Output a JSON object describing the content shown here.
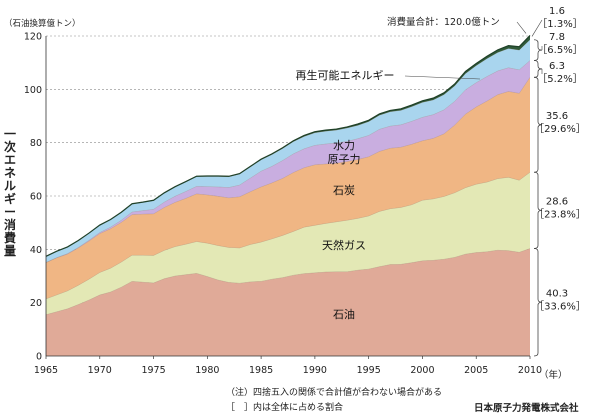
{
  "chart_data": {
    "type": "area",
    "stacked": true,
    "y_unit_label": "（石油換算億トン）",
    "ylabel": "一次エネルギー消費量",
    "x_suffix": "（年）",
    "ylim": [
      0,
      120
    ],
    "xlim": [
      1965,
      2010
    ],
    "yticks": [
      0,
      20,
      40,
      60,
      80,
      100,
      120
    ],
    "xticks": [
      1965,
      1970,
      1975,
      1980,
      1985,
      1990,
      1995,
      2000,
      2005,
      2010
    ],
    "grid": "horizontal dashed",
    "x": [
      1965,
      1966,
      1967,
      1968,
      1969,
      1970,
      1971,
      1972,
      1973,
      1974,
      1975,
      1976,
      1977,
      1978,
      1979,
      1980,
      1981,
      1982,
      1983,
      1984,
      1985,
      1986,
      1987,
      1988,
      1989,
      1990,
      1991,
      1992,
      1993,
      1994,
      1995,
      1996,
      1997,
      1998,
      1999,
      2000,
      2001,
      2002,
      2003,
      2004,
      2005,
      2006,
      2007,
      2008,
      2009,
      2010
    ],
    "series": [
      {
        "name": "石油",
        "color": "#e0aa98",
        "values": [
          15.5,
          16.6,
          17.7,
          19.3,
          21.0,
          22.9,
          24.0,
          25.8,
          28.0,
          27.7,
          27.4,
          29.0,
          30.0,
          30.5,
          31.0,
          29.8,
          28.5,
          27.6,
          27.3,
          27.8,
          28.0,
          28.8,
          29.4,
          30.3,
          30.9,
          31.2,
          31.5,
          31.6,
          31.6,
          32.2,
          32.6,
          33.5,
          34.3,
          34.4,
          35.0,
          35.7,
          35.9,
          36.3,
          37.0,
          38.2,
          38.8,
          39.1,
          39.7,
          39.5,
          38.9,
          40.3
        ]
      },
      {
        "name": "天然ガス",
        "color": "#e3e8b5",
        "values": [
          5.9,
          6.3,
          6.7,
          7.2,
          7.8,
          8.4,
          8.9,
          9.4,
          9.8,
          10.1,
          10.3,
          10.6,
          11.0,
          11.4,
          11.9,
          12.5,
          12.9,
          13.1,
          13.2,
          14.0,
          14.7,
          15.1,
          15.8,
          16.4,
          17.4,
          17.8,
          18.2,
          18.7,
          19.3,
          19.4,
          19.9,
          20.7,
          20.9,
          21.3,
          21.7,
          22.7,
          23.0,
          23.5,
          24.2,
          24.9,
          25.6,
          26.1,
          26.8,
          27.5,
          27.0,
          28.6
        ]
      },
      {
        "name": "石炭",
        "color": "#f0b684",
        "values": [
          13.6,
          13.9,
          13.8,
          14.0,
          14.3,
          14.6,
          14.8,
          14.9,
          15.2,
          15.4,
          15.6,
          16.1,
          16.6,
          17.2,
          17.9,
          18.1,
          18.5,
          18.6,
          19.2,
          19.8,
          20.7,
          21.0,
          21.4,
          22.1,
          22.3,
          22.7,
          22.3,
          22.0,
          22.0,
          22.1,
          22.2,
          22.5,
          22.7,
          22.6,
          22.7,
          22.3,
          22.7,
          23.5,
          25.4,
          27.6,
          29.0,
          30.4,
          31.5,
          32.2,
          32.6,
          35.6
        ]
      },
      {
        "name": "原子力",
        "color": "#c9aee0",
        "values": [
          0.1,
          0.1,
          0.2,
          0.2,
          0.3,
          0.4,
          0.6,
          0.8,
          1.0,
          1.3,
          1.7,
          2.0,
          2.3,
          2.6,
          2.8,
          3.1,
          3.5,
          3.9,
          4.4,
          5.1,
          5.9,
          6.2,
          6.7,
          7.0,
          7.1,
          7.3,
          7.5,
          7.6,
          7.6,
          7.8,
          8.0,
          8.3,
          8.3,
          8.4,
          8.6,
          8.8,
          8.9,
          9.0,
          8.9,
          9.1,
          9.1,
          9.2,
          8.9,
          8.9,
          8.8,
          6.3
        ]
      },
      {
        "name": "水力",
        "color": "#a9d5ee",
        "values": [
          2.2,
          2.3,
          2.4,
          2.5,
          2.6,
          2.7,
          2.8,
          2.9,
          3.0,
          3.1,
          3.3,
          3.4,
          3.5,
          3.6,
          3.7,
          3.8,
          3.9,
          4.0,
          4.1,
          4.2,
          4.3,
          4.4,
          4.5,
          4.6,
          4.6,
          4.7,
          4.8,
          4.8,
          5.0,
          5.0,
          5.2,
          5.3,
          5.4,
          5.4,
          5.5,
          5.6,
          5.5,
          5.7,
          5.8,
          6.1,
          6.4,
          6.7,
          6.9,
          7.2,
          7.4,
          7.8
        ]
      },
      {
        "name": "再生可能エネルギー",
        "color": "#2f5a3a",
        "values": [
          0.1,
          0.1,
          0.1,
          0.1,
          0.1,
          0.1,
          0.1,
          0.1,
          0.1,
          0.1,
          0.1,
          0.1,
          0.1,
          0.1,
          0.1,
          0.2,
          0.2,
          0.2,
          0.2,
          0.2,
          0.2,
          0.3,
          0.3,
          0.3,
          0.4,
          0.4,
          0.4,
          0.4,
          0.4,
          0.5,
          0.5,
          0.5,
          0.5,
          0.6,
          0.6,
          0.6,
          0.7,
          0.7,
          0.7,
          0.8,
          0.8,
          0.9,
          1.0,
          1.1,
          1.3,
          1.6
        ]
      }
    ],
    "inner_labels": {
      "oil": "石油",
      "gas": "天然ガス",
      "coal": "石炭",
      "nuclear": "原子力",
      "hydro": "水力",
      "renewable": "再生可能エネルギー"
    },
    "right_annotations": [
      {
        "value": "1.6",
        "share": "［1.3%］"
      },
      {
        "value": "7.8",
        "share": "［6.5%］"
      },
      {
        "value": "6.3",
        "share": "［5.2%］"
      },
      {
        "value": "35.6",
        "share": "［29.6%］"
      },
      {
        "value": "28.6",
        "share": "［23.8%］"
      },
      {
        "value": "40.3",
        "share": "［33.6%］"
      }
    ],
    "total_label": "消費量合計：120.0億トン",
    "notes": [
      "（注）四捨五入の関係で合計値が合わない場合がある",
      "［　］内は全体に占める割合"
    ],
    "source": "日本原子力発電株式会社"
  }
}
